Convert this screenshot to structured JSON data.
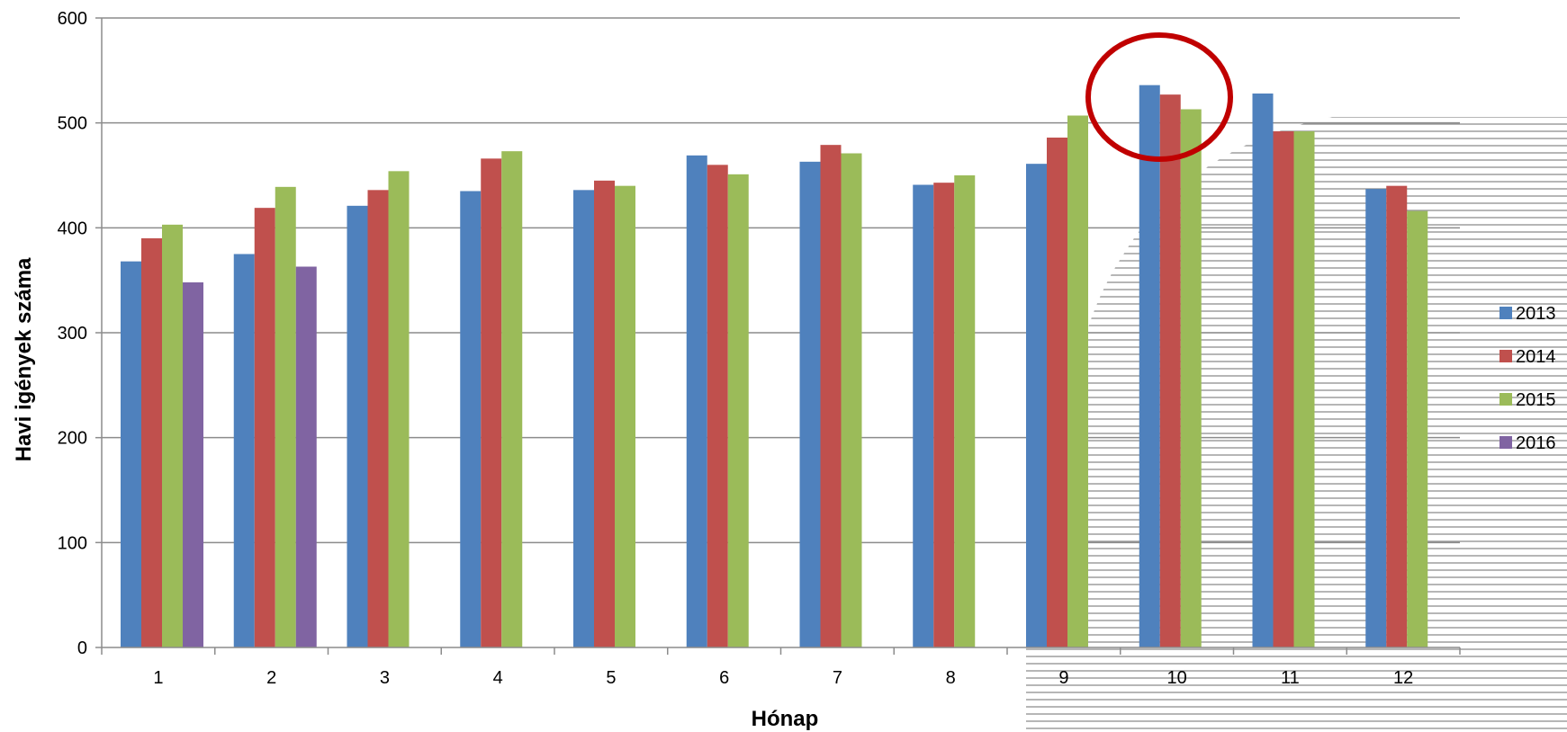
{
  "chart_data": {
    "type": "bar",
    "title": "",
    "xlabel": "Hónap",
    "ylabel": "Havi igények  száma",
    "categories": [
      "1",
      "2",
      "3",
      "4",
      "5",
      "6",
      "7",
      "8",
      "9",
      "10",
      "11",
      "12"
    ],
    "ylim": [
      0,
      600
    ],
    "yticks": [
      0,
      100,
      200,
      300,
      400,
      500,
      600
    ],
    "grid": true,
    "legend_position": "right",
    "series": [
      {
        "name": "2013",
        "color": "#4F81BD",
        "values": [
          368,
          375,
          421,
          435,
          436,
          469,
          463,
          441,
          461,
          536,
          528,
          437
        ]
      },
      {
        "name": "2014",
        "color": "#C0504D",
        "values": [
          390,
          419,
          436,
          466,
          445,
          460,
          479,
          443,
          486,
          527,
          492,
          440
        ]
      },
      {
        "name": "2015",
        "color": "#9BBB59",
        "values": [
          403,
          439,
          454,
          473,
          440,
          451,
          471,
          450,
          507,
          513,
          492,
          416
        ]
      },
      {
        "name": "2016",
        "color": "#8064A2",
        "values": [
          348,
          363,
          null,
          null,
          null,
          null,
          null,
          null,
          null,
          null,
          null,
          null
        ]
      }
    ],
    "highlight": {
      "category": "10",
      "shape": "ellipse",
      "color": "#C00000"
    }
  }
}
